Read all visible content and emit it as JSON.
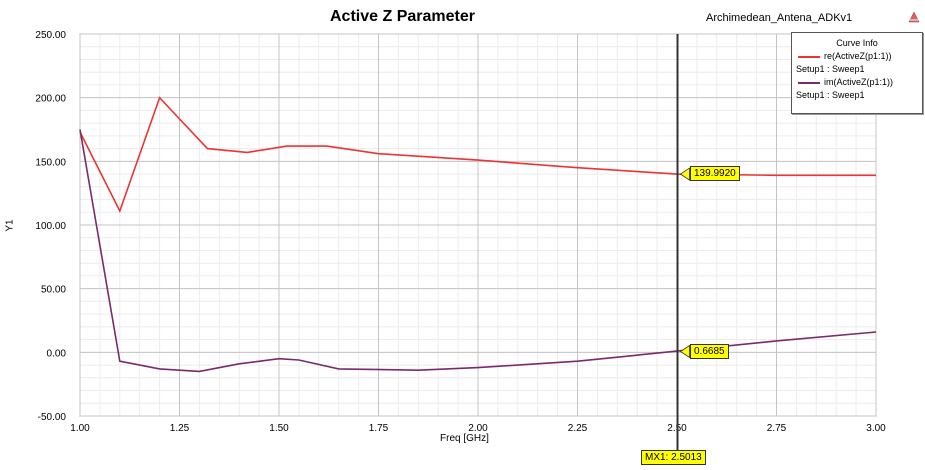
{
  "chart_data": {
    "type": "line",
    "title": "Active Z Parameter",
    "project": "Archimedean_Antena_ADKv1",
    "xlabel": "Freq [GHz]",
    "ylabel": "Y1",
    "xlim": [
      1.0,
      3.0
    ],
    "ylim": [
      -50,
      250
    ],
    "x_ticks": [
      "1.00",
      "1.25",
      "1.50",
      "1.75",
      "2.00",
      "2.25",
      "2.50",
      "2.75",
      "3.00"
    ],
    "y_ticks": [
      "-50.00",
      "0.00",
      "50.00",
      "100.00",
      "150.00",
      "200.00",
      "250.00"
    ],
    "grid": true,
    "legend": {
      "title": "Curve Info",
      "placement": "top-right",
      "entries": [
        {
          "expr": "re(ActiveZ(p1:1))",
          "setup": "Setup1 : Sweep1"
        },
        {
          "expr": "im(ActiveZ(p1:1))",
          "setup": "Setup1 : Sweep1"
        }
      ]
    },
    "series": [
      {
        "color": "#ee3333",
        "x": [
          1.0,
          1.1,
          1.2,
          1.32,
          1.42,
          1.52,
          1.62,
          1.75,
          2.0,
          2.25,
          2.5,
          2.75,
          3.0
        ],
        "y": [
          173,
          111,
          200,
          160,
          157,
          162,
          162,
          156,
          151,
          145,
          140,
          139,
          139
        ]
      },
      {
        "color": "#7a2a6a",
        "x": [
          1.0,
          1.1,
          1.2,
          1.3,
          1.4,
          1.5,
          1.55,
          1.65,
          1.85,
          2.0,
          2.25,
          2.5,
          2.75,
          3.0
        ],
        "y": [
          175,
          -7,
          -13,
          -15,
          -9,
          -5,
          -6,
          -13,
          -14,
          -12,
          -7,
          1,
          9,
          16
        ]
      }
    ],
    "marker": {
      "name": "MX1",
      "x_label": "MX1: 2.5013",
      "x": 2.5013,
      "values": [
        "139.9920",
        "0.6685"
      ],
      "y_values": [
        140,
        0.67
      ]
    }
  }
}
